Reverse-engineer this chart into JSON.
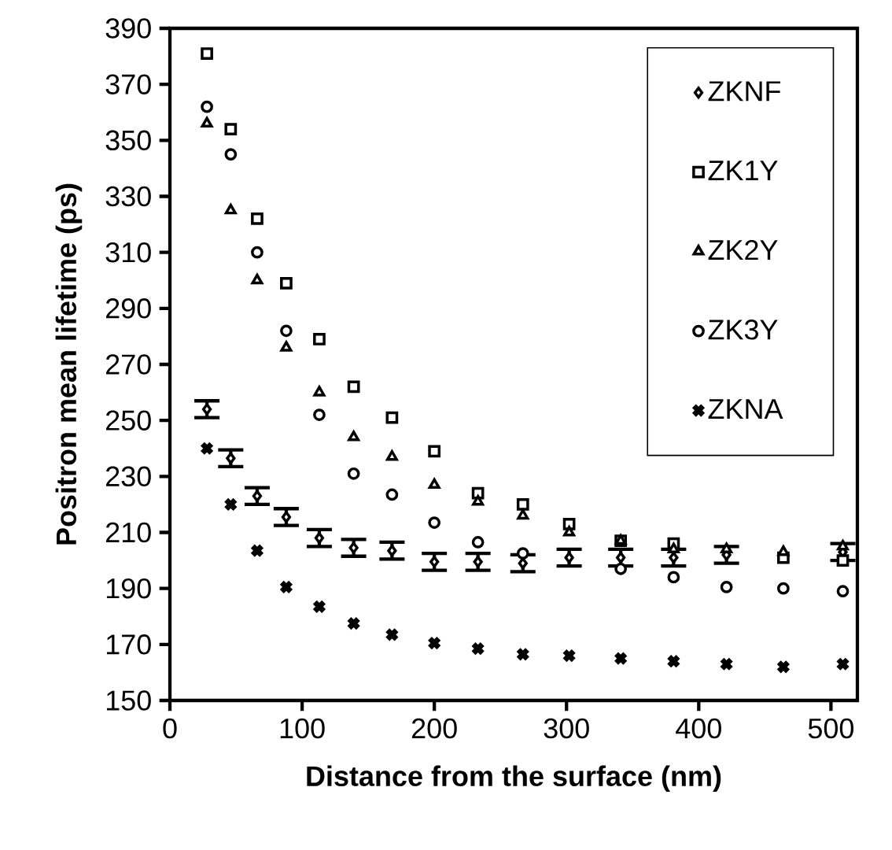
{
  "chart_data": {
    "type": "scatter",
    "xlabel": "Distance from the surface (nm)",
    "ylabel": "Positron mean lifetime (ps)",
    "x": [
      28,
      46,
      66,
      88,
      113,
      139,
      168,
      200,
      233,
      267,
      302,
      341,
      381,
      421,
      464,
      509
    ],
    "xlim": [
      0,
      520
    ],
    "xticks": [
      0,
      100,
      200,
      300,
      400,
      500
    ],
    "ylim": [
      150,
      390
    ],
    "yticks": [
      150,
      170,
      190,
      210,
      230,
      250,
      270,
      290,
      310,
      330,
      350,
      370,
      390
    ],
    "legend": "top right",
    "grid": false,
    "series": [
      {
        "name": "ZKNF",
        "color": "#000000",
        "marker": "diamond",
        "values": [
          254,
          236.5,
          223,
          215.5,
          208,
          204.5,
          203.5,
          199.5,
          199.5,
          199,
          201,
          201,
          201,
          202,
          null,
          203
        ],
        "errors": [
          3,
          3,
          3,
          3,
          3,
          3,
          3,
          3,
          3,
          3,
          3,
          3,
          3,
          3,
          null,
          3
        ]
      },
      {
        "name": "ZK1Y",
        "color": "#000000",
        "marker": "square",
        "values": [
          381,
          354,
          322,
          299,
          279,
          262,
          251,
          239,
          224,
          220,
          213,
          207,
          206,
          null,
          201,
          200
        ]
      },
      {
        "name": "ZK2Y",
        "color": "#000000",
        "marker": "triangle",
        "values": [
          356,
          325,
          300,
          276,
          260,
          244,
          237,
          227,
          221,
          216,
          210,
          207,
          204,
          204,
          203,
          205
        ]
      },
      {
        "name": "ZK3Y",
        "color": "#000000",
        "marker": "circle",
        "values": [
          362,
          345,
          310,
          282,
          252,
          231,
          223.5,
          213.5,
          206.5,
          202.5,
          null,
          197,
          194,
          190.5,
          190,
          189
        ]
      },
      {
        "name": "ZKNA",
        "color": "#000000",
        "marker": "cross",
        "values": [
          240,
          220,
          203.5,
          190.5,
          183.5,
          177.5,
          173.5,
          170.5,
          168.5,
          166.5,
          166,
          165,
          164,
          163,
          162,
          163
        ]
      }
    ]
  }
}
